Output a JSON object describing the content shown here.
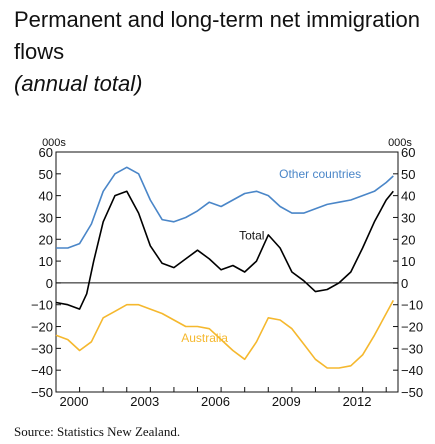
{
  "title_line1": "Permanent and long-term net immigration",
  "title_line2": "flows",
  "subtitle": "(annual total)",
  "source": "Source: Statistics New Zealand.",
  "chart_data": {
    "type": "line",
    "title": "Permanent and long-term net immigration flows",
    "subtitle": "(annual total)",
    "y_unit_left": "000s",
    "y_unit_right": "000s",
    "ylim": [
      -50,
      60
    ],
    "yticks": [
      60,
      50,
      40,
      30,
      20,
      10,
      0,
      -10,
      -20,
      -30,
      -40,
      -50
    ],
    "xlim": [
      2000,
      2014.5
    ],
    "xticks": [
      2000,
      2003,
      2006,
      2009,
      2012
    ],
    "zero_line": true,
    "grid": false,
    "series": [
      {
        "name": "Other countries",
        "color": "#4a86c8",
        "x": [
          2000,
          2000.5,
          2001,
          2001.5,
          2002,
          2002.5,
          2003,
          2003.5,
          2004,
          2004.5,
          2005,
          2005.5,
          2006,
          2006.5,
          2007,
          2007.5,
          2008,
          2008.5,
          2009,
          2009.5,
          2010,
          2010.5,
          2011,
          2011.5,
          2012,
          2012.5,
          2013,
          2013.5,
          2014,
          2014.3
        ],
        "y": [
          16,
          16,
          18,
          27,
          42,
          50,
          53,
          50,
          38,
          29,
          28,
          30,
          33,
          37,
          35,
          38,
          41,
          42,
          40,
          35,
          32,
          32,
          34,
          36,
          37,
          38,
          40,
          42,
          46,
          49
        ]
      },
      {
        "name": "Total",
        "color": "#000000",
        "x": [
          2000,
          2000.5,
          2001,
          2001.3,
          2001.6,
          2002,
          2002.5,
          2003,
          2003.5,
          2004,
          2004.5,
          2005,
          2005.5,
          2006,
          2006.5,
          2007,
          2007.5,
          2008,
          2008.5,
          2009,
          2009.5,
          2010,
          2010.5,
          2011,
          2011.5,
          2012,
          2012.5,
          2013,
          2013.5,
          2014,
          2014.3
        ],
        "y": [
          -9,
          -10,
          -12,
          -5,
          10,
          28,
          40,
          42,
          32,
          17,
          9,
          7,
          11,
          15,
          11,
          6,
          8,
          5,
          10,
          22,
          16,
          5,
          1,
          -4,
          -3,
          0,
          5,
          16,
          28,
          38,
          42
        ]
      },
      {
        "name": "Australia",
        "color": "#f5b82e",
        "x": [
          2000,
          2000.5,
          2001,
          2001.5,
          2002,
          2002.5,
          2003,
          2003.5,
          2004,
          2004.5,
          2005,
          2005.5,
          2006,
          2006.5,
          2007,
          2007.5,
          2008,
          2008.5,
          2009,
          2009.5,
          2010,
          2010.5,
          2011,
          2011.5,
          2012,
          2012.5,
          2013,
          2013.5,
          2014,
          2014.3
        ],
        "y": [
          -24,
          -26,
          -31,
          -27,
          -16,
          -13,
          -10,
          -10,
          -12,
          -14,
          -17,
          -20,
          -20,
          -21,
          -26,
          -31,
          -35,
          -27,
          -16,
          -17,
          -21,
          -28,
          -35,
          -39,
          -39,
          -38,
          -33,
          -24,
          -14,
          -8
        ]
      }
    ],
    "annotations": [
      {
        "text": "Other countries",
        "series": "Other countries",
        "x": 2011.2,
        "y": 48
      },
      {
        "text": "Total",
        "series": "Total",
        "x": 2008.3,
        "y": 20
      },
      {
        "text": "Australia",
        "series": "Australia",
        "x": 2006.3,
        "y": -27
      }
    ]
  }
}
